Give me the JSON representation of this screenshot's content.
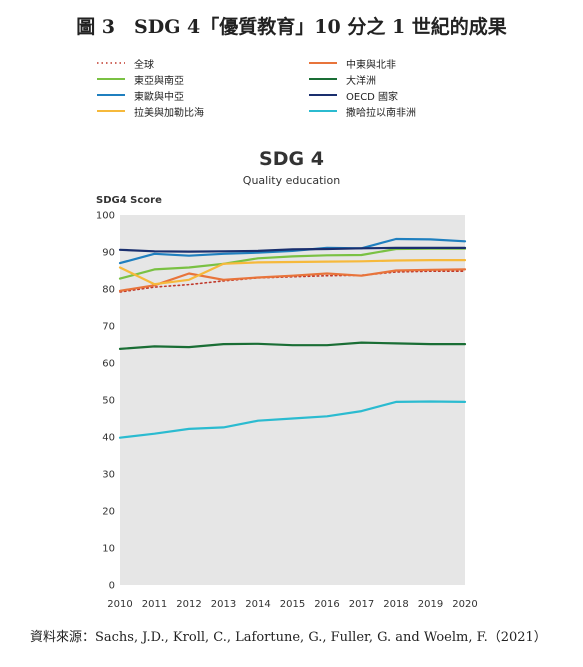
{
  "figure_title": "圖 3　SDG 4「優質教育」10 分之 1 世紀的成果",
  "source": "資料來源：Sachs, J.D., Kroll, C., Lafortune, G., Fuller, G. and Woelm, F.（2021）",
  "chart_data": {
    "type": "line",
    "title": "SDG 4",
    "subtitle": "Quality education",
    "ylabel": "SDG4 Score",
    "xlabel": "",
    "ylim": [
      0,
      100
    ],
    "yticks": [
      0,
      10,
      20,
      30,
      40,
      50,
      60,
      70,
      80,
      90,
      100
    ],
    "x": [
      2010,
      2011,
      2012,
      2013,
      2014,
      2015,
      2016,
      2017,
      2018,
      2019,
      2020
    ],
    "grid": false,
    "legend_position": "top",
    "background": "#e6e6e6",
    "series": [
      {
        "name": "全球",
        "color": "#c0392b",
        "dash": "dotted",
        "values": [
          79.2,
          80.5,
          81.2,
          82.2,
          83.0,
          83.3,
          83.6,
          83.7,
          84.6,
          84.8,
          84.8
        ]
      },
      {
        "name": "中東與北非",
        "color": "#e8743b",
        "dash": "solid",
        "values": [
          79.5,
          81.0,
          84.2,
          82.5,
          83.1,
          83.6,
          84.2,
          83.6,
          85.0,
          85.2,
          85.3
        ]
      },
      {
        "name": "東亞與南亞",
        "color": "#7ac143",
        "dash": "solid",
        "values": [
          82.8,
          85.3,
          85.8,
          86.8,
          88.3,
          88.8,
          89.1,
          89.2,
          90.8,
          90.9,
          90.9
        ]
      },
      {
        "name": "大洋洲",
        "color": "#1a6e35",
        "dash": "solid",
        "values": [
          63.8,
          64.5,
          64.3,
          65.1,
          65.2,
          64.8,
          64.8,
          65.5,
          65.3,
          65.1,
          65.1
        ]
      },
      {
        "name": "東歐與中亞",
        "color": "#1f7fbf",
        "dash": "solid",
        "values": [
          87.0,
          89.5,
          89.0,
          89.5,
          89.8,
          90.3,
          91.1,
          91.0,
          93.5,
          93.4,
          92.9
        ]
      },
      {
        "name": "OECD 國家",
        "color": "#1a2f6e",
        "dash": "solid",
        "values": [
          90.6,
          90.2,
          90.1,
          90.2,
          90.3,
          90.7,
          90.8,
          91.0,
          91.1,
          91.1,
          91.1
        ]
      },
      {
        "name": "拉美與加勒比海",
        "color": "#f6b93b",
        "dash": "solid",
        "values": [
          85.8,
          81.3,
          82.5,
          86.8,
          87.2,
          87.3,
          87.4,
          87.5,
          87.7,
          87.8,
          87.8
        ]
      },
      {
        "name": "撒哈拉以南非洲",
        "color": "#2bbbd0",
        "dash": "solid",
        "values": [
          39.8,
          40.9,
          42.2,
          42.6,
          44.4,
          45.0,
          45.6,
          47.0,
          49.5,
          49.6,
          49.5
        ]
      }
    ]
  }
}
